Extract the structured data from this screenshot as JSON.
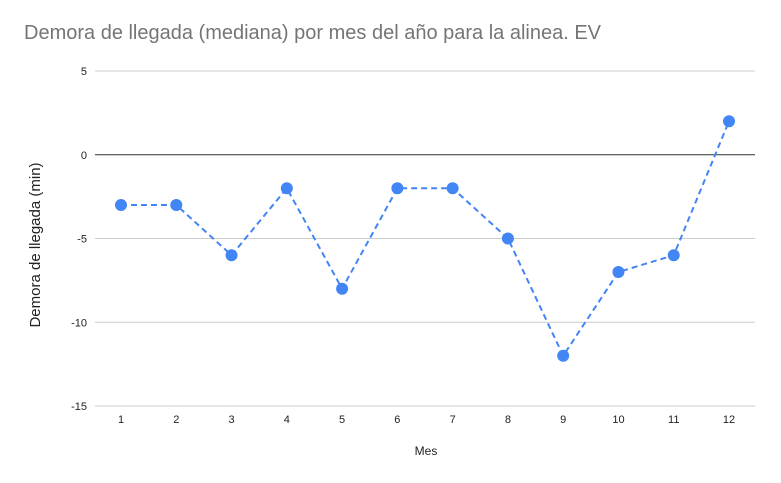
{
  "chart_data": {
    "type": "line",
    "title": "Demora de llegada (mediana) por mes del año para la alinea. EV",
    "xlabel": "Mes",
    "ylabel": "Demora de llegada (min)",
    "categories": [
      "1",
      "2",
      "3",
      "4",
      "5",
      "6",
      "7",
      "8",
      "9",
      "10",
      "11",
      "12"
    ],
    "series": [
      {
        "values": [
          -3,
          -3,
          -6,
          -2,
          -8,
          -2,
          -2,
          -5,
          -12,
          -7,
          -6,
          2
        ],
        "color": "#4285f4",
        "line_style": "dashed",
        "marker": "circle"
      }
    ],
    "ylim": [
      -15,
      5
    ],
    "yticks": [
      5,
      0,
      -5,
      -10,
      -15
    ],
    "grid": true,
    "zero_line": true,
    "legend": "none"
  }
}
